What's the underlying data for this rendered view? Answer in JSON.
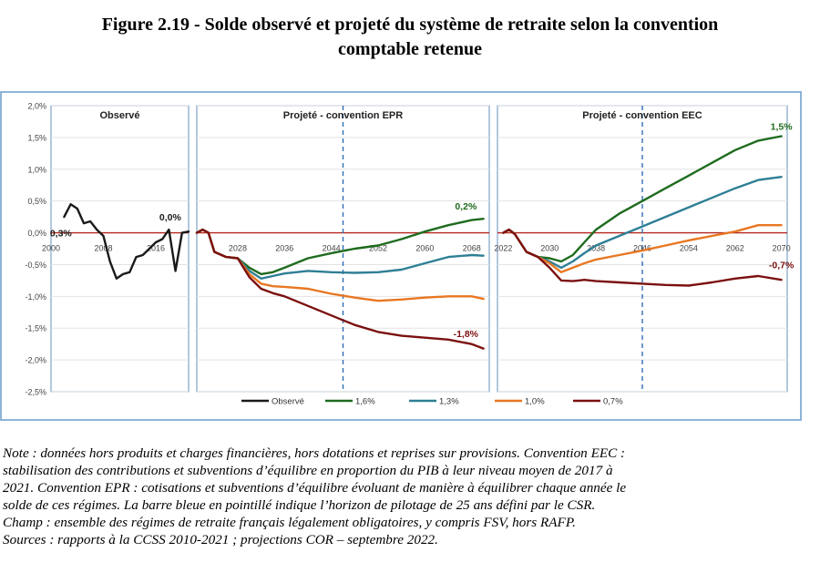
{
  "title_line1": "Figure 2.19 - Solde observé et projeté du système de retraite selon la convention",
  "title_line2": "comptable retenue",
  "chart_data": {
    "type": "line",
    "ylim": [
      -2.5,
      2.0
    ],
    "y_ticks": [
      "2,0%",
      "1,5%",
      "1,0%",
      "0,5%",
      "0,0%",
      "-0,5%",
      "-1,0%",
      "-1,5%",
      "-2,0%",
      "-2,5%"
    ],
    "y_tick_values": [
      2.0,
      1.5,
      1.0,
      0.5,
      0.0,
      -0.5,
      -1.0,
      -1.5,
      -2.0,
      -2.5
    ],
    "grid": true,
    "legend_position": "bottom",
    "legend": [
      {
        "label": "Observé",
        "color": "#1a1a1a"
      },
      {
        "label": "1,6%",
        "color": "#1e6b1e"
      },
      {
        "label": "1,3%",
        "color": "#2e7f95"
      },
      {
        "label": "1,0%",
        "color": "#e87722"
      },
      {
        "label": "0,7%",
        "color": "#7b1010"
      }
    ],
    "panels": [
      {
        "key": "obs",
        "title": "Observé",
        "xlim": [
          2000,
          2021
        ],
        "x_ticks": [
          2000,
          2008,
          2016
        ],
        "series": [
          {
            "legend": "Observé",
            "color": "#1a1a1a",
            "x": [
              2002,
              2003,
              2004,
              2005,
              2006,
              2007,
              2008,
              2009,
              2010,
              2011,
              2012,
              2013,
              2014,
              2015,
              2016,
              2017,
              2018,
              2019,
              2020,
              2021
            ],
            "y": [
              0.25,
              0.45,
              0.38,
              0.15,
              0.18,
              0.05,
              -0.05,
              -0.45,
              -0.72,
              -0.65,
              -0.62,
              -0.38,
              -0.35,
              -0.25,
              -0.15,
              -0.1,
              0.05,
              -0.6,
              0.0,
              0.02
            ]
          }
        ],
        "annotations": [
          {
            "text": "0,3%",
            "x": 2001.5,
            "y": 0.0,
            "color": "#1a1a1a"
          },
          {
            "text": "0,0%",
            "x": 2018.2,
            "y": 0.25,
            "color": "#1a1a1a"
          }
        ]
      },
      {
        "key": "epr",
        "title": "Projeté - convention EPR",
        "xlim": [
          2021,
          2071
        ],
        "x_ticks": [
          2028,
          2036,
          2044,
          2052,
          2060,
          2068
        ],
        "horizon_year": 2046,
        "series": [
          {
            "legend": "1,6%",
            "color": "#1e6b1e",
            "x": [
              2021,
              2022,
              2023,
              2024,
              2026,
              2028,
              2030,
              2032,
              2034,
              2036,
              2040,
              2044,
              2048,
              2052,
              2056,
              2060,
              2064,
              2068,
              2070
            ],
            "y": [
              0.0,
              0.05,
              0.0,
              -0.3,
              -0.38,
              -0.4,
              -0.55,
              -0.65,
              -0.62,
              -0.55,
              -0.4,
              -0.32,
              -0.25,
              -0.2,
              -0.1,
              0.02,
              0.12,
              0.2,
              0.22
            ]
          },
          {
            "legend": "1,3%",
            "color": "#2e7f95",
            "x": [
              2021,
              2022,
              2023,
              2024,
              2026,
              2028,
              2030,
              2032,
              2034,
              2036,
              2040,
              2044,
              2048,
              2052,
              2056,
              2060,
              2064,
              2068,
              2070
            ],
            "y": [
              0.0,
              0.05,
              0.0,
              -0.3,
              -0.38,
              -0.4,
              -0.6,
              -0.72,
              -0.68,
              -0.64,
              -0.6,
              -0.62,
              -0.63,
              -0.62,
              -0.58,
              -0.48,
              -0.38,
              -0.35,
              -0.36
            ]
          },
          {
            "legend": "1,0%",
            "color": "#e87722",
            "x": [
              2021,
              2022,
              2023,
              2024,
              2026,
              2028,
              2030,
              2032,
              2034,
              2036,
              2040,
              2044,
              2048,
              2052,
              2056,
              2060,
              2064,
              2068,
              2070
            ],
            "y": [
              0.0,
              0.05,
              0.0,
              -0.3,
              -0.38,
              -0.4,
              -0.65,
              -0.8,
              -0.84,
              -0.85,
              -0.88,
              -0.96,
              -1.02,
              -1.07,
              -1.05,
              -1.02,
              -1.0,
              -1.0,
              -1.04
            ]
          },
          {
            "legend": "0,7%",
            "color": "#7b1010",
            "x": [
              2021,
              2022,
              2023,
              2024,
              2026,
              2028,
              2030,
              2032,
              2034,
              2036,
              2040,
              2044,
              2048,
              2052,
              2056,
              2060,
              2064,
              2068,
              2070
            ],
            "y": [
              0.0,
              0.05,
              0.0,
              -0.3,
              -0.38,
              -0.4,
              -0.7,
              -0.88,
              -0.95,
              -1.0,
              -1.15,
              -1.3,
              -1.45,
              -1.56,
              -1.62,
              -1.65,
              -1.68,
              -1.75,
              -1.82
            ]
          }
        ],
        "annotations": [
          {
            "text": "0,2%",
            "x": 2067,
            "y": 0.42,
            "color": "#1e6b1e"
          },
          {
            "text": "-1,8%",
            "x": 2067,
            "y": -1.58,
            "color": "#7b1010"
          }
        ]
      },
      {
        "key": "eec",
        "title": "Projeté - convention EEC",
        "xlim": [
          2021,
          2071
        ],
        "x_ticks": [
          2022,
          2030,
          2038,
          2046,
          2054,
          2062,
          2070
        ],
        "horizon_year": 2046,
        "series": [
          {
            "legend": "1,6%",
            "color": "#1e6b1e",
            "x": [
              2022,
              2023,
              2024,
              2026,
              2028,
              2030,
              2032,
              2034,
              2036,
              2038,
              2042,
              2046,
              2050,
              2054,
              2058,
              2062,
              2066,
              2070
            ],
            "y": [
              0.0,
              0.05,
              -0.02,
              -0.3,
              -0.38,
              -0.4,
              -0.45,
              -0.35,
              -0.15,
              0.05,
              0.3,
              0.5,
              0.7,
              0.9,
              1.1,
              1.3,
              1.45,
              1.52
            ]
          },
          {
            "legend": "1,3%",
            "color": "#2e7f95",
            "x": [
              2022,
              2023,
              2024,
              2026,
              2028,
              2030,
              2032,
              2034,
              2036,
              2038,
              2042,
              2046,
              2050,
              2054,
              2058,
              2062,
              2066,
              2070
            ],
            "y": [
              0.0,
              0.05,
              -0.02,
              -0.3,
              -0.38,
              -0.45,
              -0.55,
              -0.45,
              -0.32,
              -0.2,
              -0.05,
              0.1,
              0.25,
              0.4,
              0.55,
              0.7,
              0.83,
              0.88
            ]
          },
          {
            "legend": "1,0%",
            "color": "#e87722",
            "x": [
              2022,
              2023,
              2024,
              2026,
              2028,
              2030,
              2032,
              2034,
              2036,
              2038,
              2042,
              2046,
              2050,
              2054,
              2058,
              2062,
              2066,
              2070
            ],
            "y": [
              0.0,
              0.05,
              -0.02,
              -0.3,
              -0.38,
              -0.48,
              -0.62,
              -0.55,
              -0.48,
              -0.42,
              -0.35,
              -0.28,
              -0.2,
              -0.12,
              -0.05,
              0.02,
              0.12,
              0.12
            ]
          },
          {
            "legend": "0,7%",
            "color": "#7b1010",
            "x": [
              2022,
              2023,
              2024,
              2026,
              2028,
              2030,
              2032,
              2034,
              2036,
              2038,
              2042,
              2046,
              2050,
              2054,
              2058,
              2062,
              2066,
              2070
            ],
            "y": [
              0.0,
              0.05,
              -0.02,
              -0.3,
              -0.38,
              -0.55,
              -0.75,
              -0.76,
              -0.74,
              -0.76,
              -0.78,
              -0.8,
              -0.82,
              -0.83,
              -0.78,
              -0.72,
              -0.68,
              -0.74
            ]
          }
        ],
        "annotations": [
          {
            "text": "1,5%",
            "x": 2070,
            "y": 1.68,
            "color": "#1e6b1e"
          },
          {
            "text": "-0,7%",
            "x": 2070,
            "y": -0.5,
            "color": "#7b1010"
          }
        ]
      }
    ]
  },
  "notes": [
    "Note : données hors produits et charges financières, hors dotations et reprises sur provisions. Convention EEC :",
    "stabilisation des contributions et subventions d’équilibre en proportion du PIB à leur niveau moyen de 2017 à",
    "2021. Convention EPR : cotisations et subventions d’équilibre évoluant de manière à équilibrer chaque année le",
    "solde de ces régimes. La barre bleue en pointillé indique l’horizon de pilotage de 25 ans défini par le CSR.",
    "Champ : ensemble des régimes de retraite français légalement obligatoires, y compris FSV, hors RAFP.",
    "Sources : rapports à la CCSS 2010-2021 ; projections COR – septembre 2022."
  ]
}
